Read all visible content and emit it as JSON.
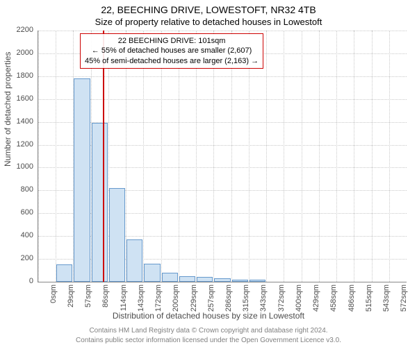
{
  "title_line1": "22, BEECHING DRIVE, LOWESTOFT, NR32 4TB",
  "title_line2": "Size of property relative to detached houses in Lowestoft",
  "y_axis_label": "Number of detached properties",
  "x_axis_label": "Distribution of detached houses by size in Lowestoft",
  "footer_line1": "Contains HM Land Registry data © Crown copyright and database right 2024.",
  "footer_line2": "Contains public sector information licensed under the Open Government Licence v3.0.",
  "chart": {
    "type": "histogram",
    "ylim": [
      0,
      2200
    ],
    "yticks": [
      0,
      200,
      400,
      600,
      800,
      1000,
      1200,
      1400,
      1600,
      1800,
      2000,
      2200
    ],
    "categories": [
      "0sqm",
      "29sqm",
      "57sqm",
      "86sqm",
      "114sqm",
      "143sqm",
      "172sqm",
      "200sqm",
      "229sqm",
      "257sqm",
      "286sqm",
      "315sqm",
      "343sqm",
      "372sqm",
      "400sqm",
      "429sqm",
      "458sqm",
      "486sqm",
      "515sqm",
      "543sqm",
      "572sqm"
    ],
    "values": [
      0,
      150,
      1780,
      1390,
      820,
      370,
      160,
      80,
      50,
      40,
      30,
      20,
      20,
      0,
      0,
      0,
      0,
      0,
      0,
      0,
      0
    ],
    "bar_fill": "#cfe2f3",
    "bar_stroke": "#6699cc",
    "grid_color": "#c8c8c8",
    "axis_color": "#888888",
    "background_color": "#ffffff",
    "label_color": "#4b4b4b",
    "label_fontsize": 11
  },
  "marker": {
    "position_ratio": 0.176,
    "color": "#cc0000"
  },
  "annotation": {
    "line1": "22 BEECHING DRIVE: 101sqm",
    "line2": "← 55% of detached houses are smaller (2,607)",
    "line3": "45% of semi-detached houses are larger (2,163) →",
    "border_color": "#cc0000"
  }
}
